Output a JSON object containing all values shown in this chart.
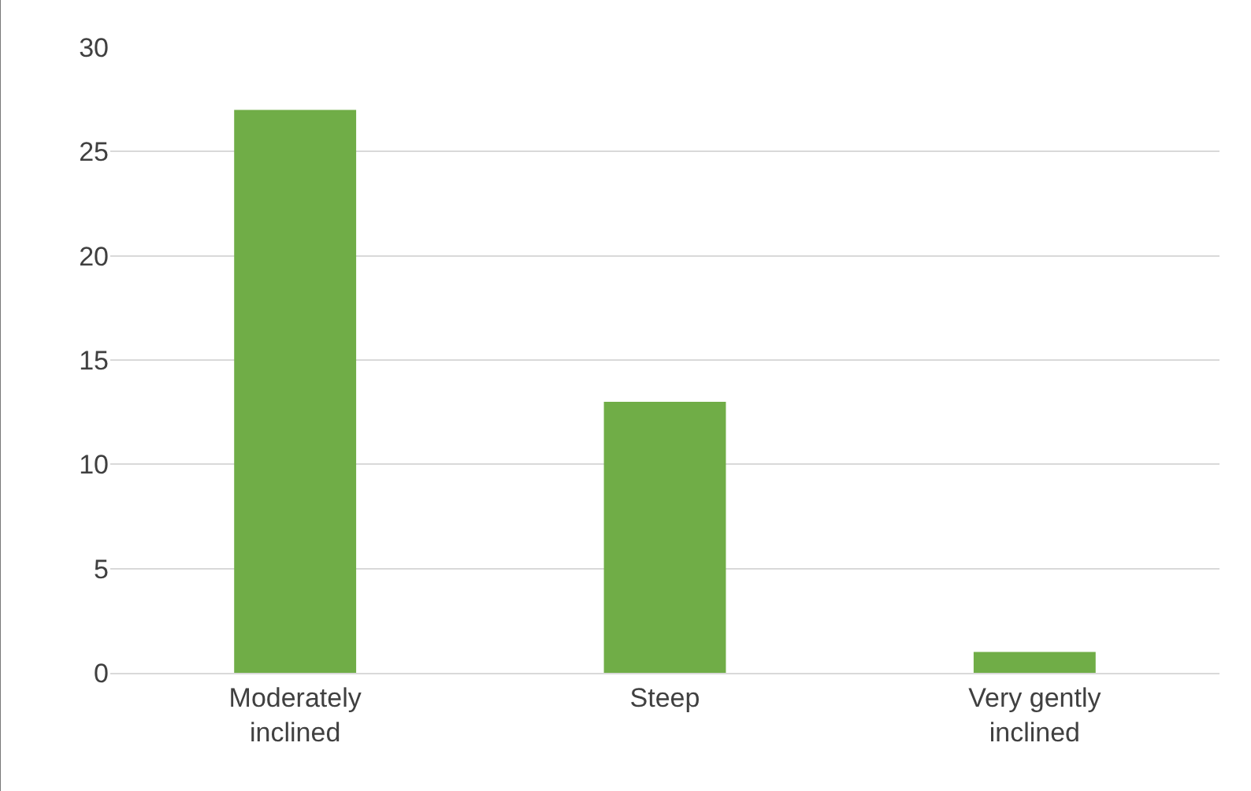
{
  "chart_data": {
    "type": "bar",
    "categories": [
      "Moderately inclined",
      "Steep",
      "Very gently inclined"
    ],
    "values": [
      27,
      13,
      1
    ],
    "color": "#70ad47",
    "ylim": [
      0,
      30
    ],
    "yticks": [
      0,
      5,
      10,
      15,
      20,
      25,
      30
    ],
    "grid": "y",
    "legend": false
  }
}
